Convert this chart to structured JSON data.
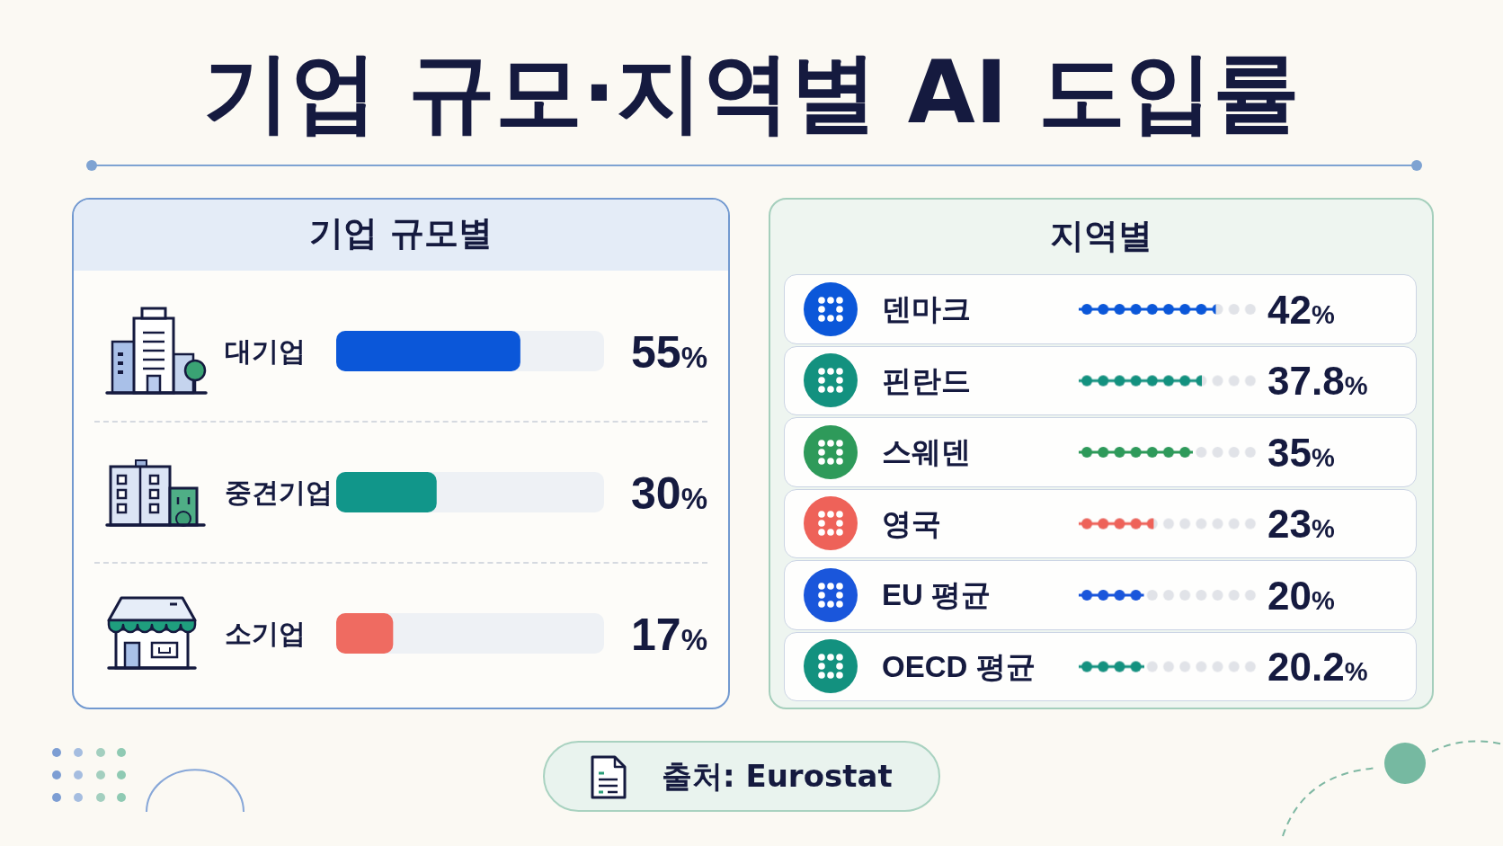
{
  "chart_data": [
    {
      "type": "bar",
      "orientation": "horizontal",
      "title": "기업 규모·지역별 AI 도입률",
      "subtitle": "기업 규모별",
      "categories": [
        "대기업",
        "중견기업",
        "소기업"
      ],
      "values": [
        55,
        30,
        17
      ],
      "colors": [
        "#0b57d9",
        "#11968a",
        "#ef6b61"
      ],
      "value_labels": [
        "55%",
        "30%",
        "17%"
      ],
      "xlim": [
        0,
        80
      ],
      "tick_labels": "y"
    },
    {
      "type": "bar",
      "orientation": "horizontal",
      "title": "지역별",
      "categories": [
        "덴마크",
        "핀란드",
        "스웨덴",
        "영국",
        "EU 평균",
        "OECD 평균"
      ],
      "values": [
        42,
        37.8,
        35,
        23,
        20,
        20.2
      ],
      "colors": [
        "#0b57d9",
        "#13917f",
        "#2e9a5a",
        "#ee6259",
        "#1a56db",
        "#13917f"
      ],
      "value_labels": [
        "42%",
        "37.8%",
        "35%",
        "23%",
        "20%",
        "20.2%"
      ],
      "xlim": [
        0,
        55
      ],
      "marker": "circle",
      "tick_labels": "y",
      "annotations": [
        "출처: Eurostat"
      ]
    }
  ]
}
